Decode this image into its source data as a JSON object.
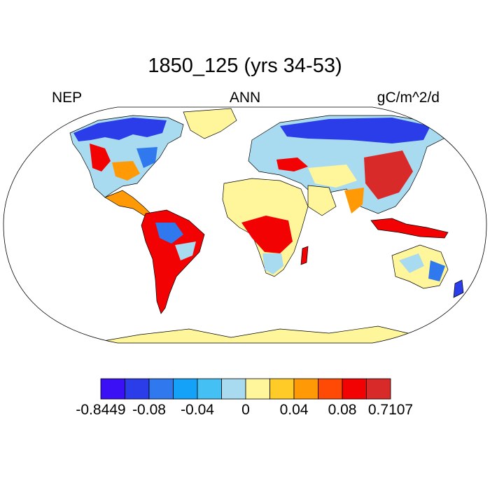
{
  "title": "1850_125 (yrs 34-53)",
  "subtitle_left": "NEP",
  "subtitle_center": "ANN",
  "subtitle_right": "gC/m^2/d",
  "colors": {
    "ocean": "#ffffff",
    "land_default": "#fff59a",
    "outline": "#000000"
  },
  "colorbar": {
    "colors": [
      "#3c10f5",
      "#2b3de8",
      "#2f78ee",
      "#13a2f8",
      "#45c0f4",
      "#a8daf0",
      "#fff59a",
      "#ffcb26",
      "#ff9a06",
      "#ff4a06",
      "#f20202",
      "#d92a2a"
    ],
    "tick_labels": [
      "-0.8449",
      "-0.08",
      "-0.04",
      "0",
      "0.04",
      "0.08",
      "0.7107"
    ],
    "tick_indices": [
      0,
      2,
      4,
      6,
      8,
      10,
      12
    ]
  }
}
